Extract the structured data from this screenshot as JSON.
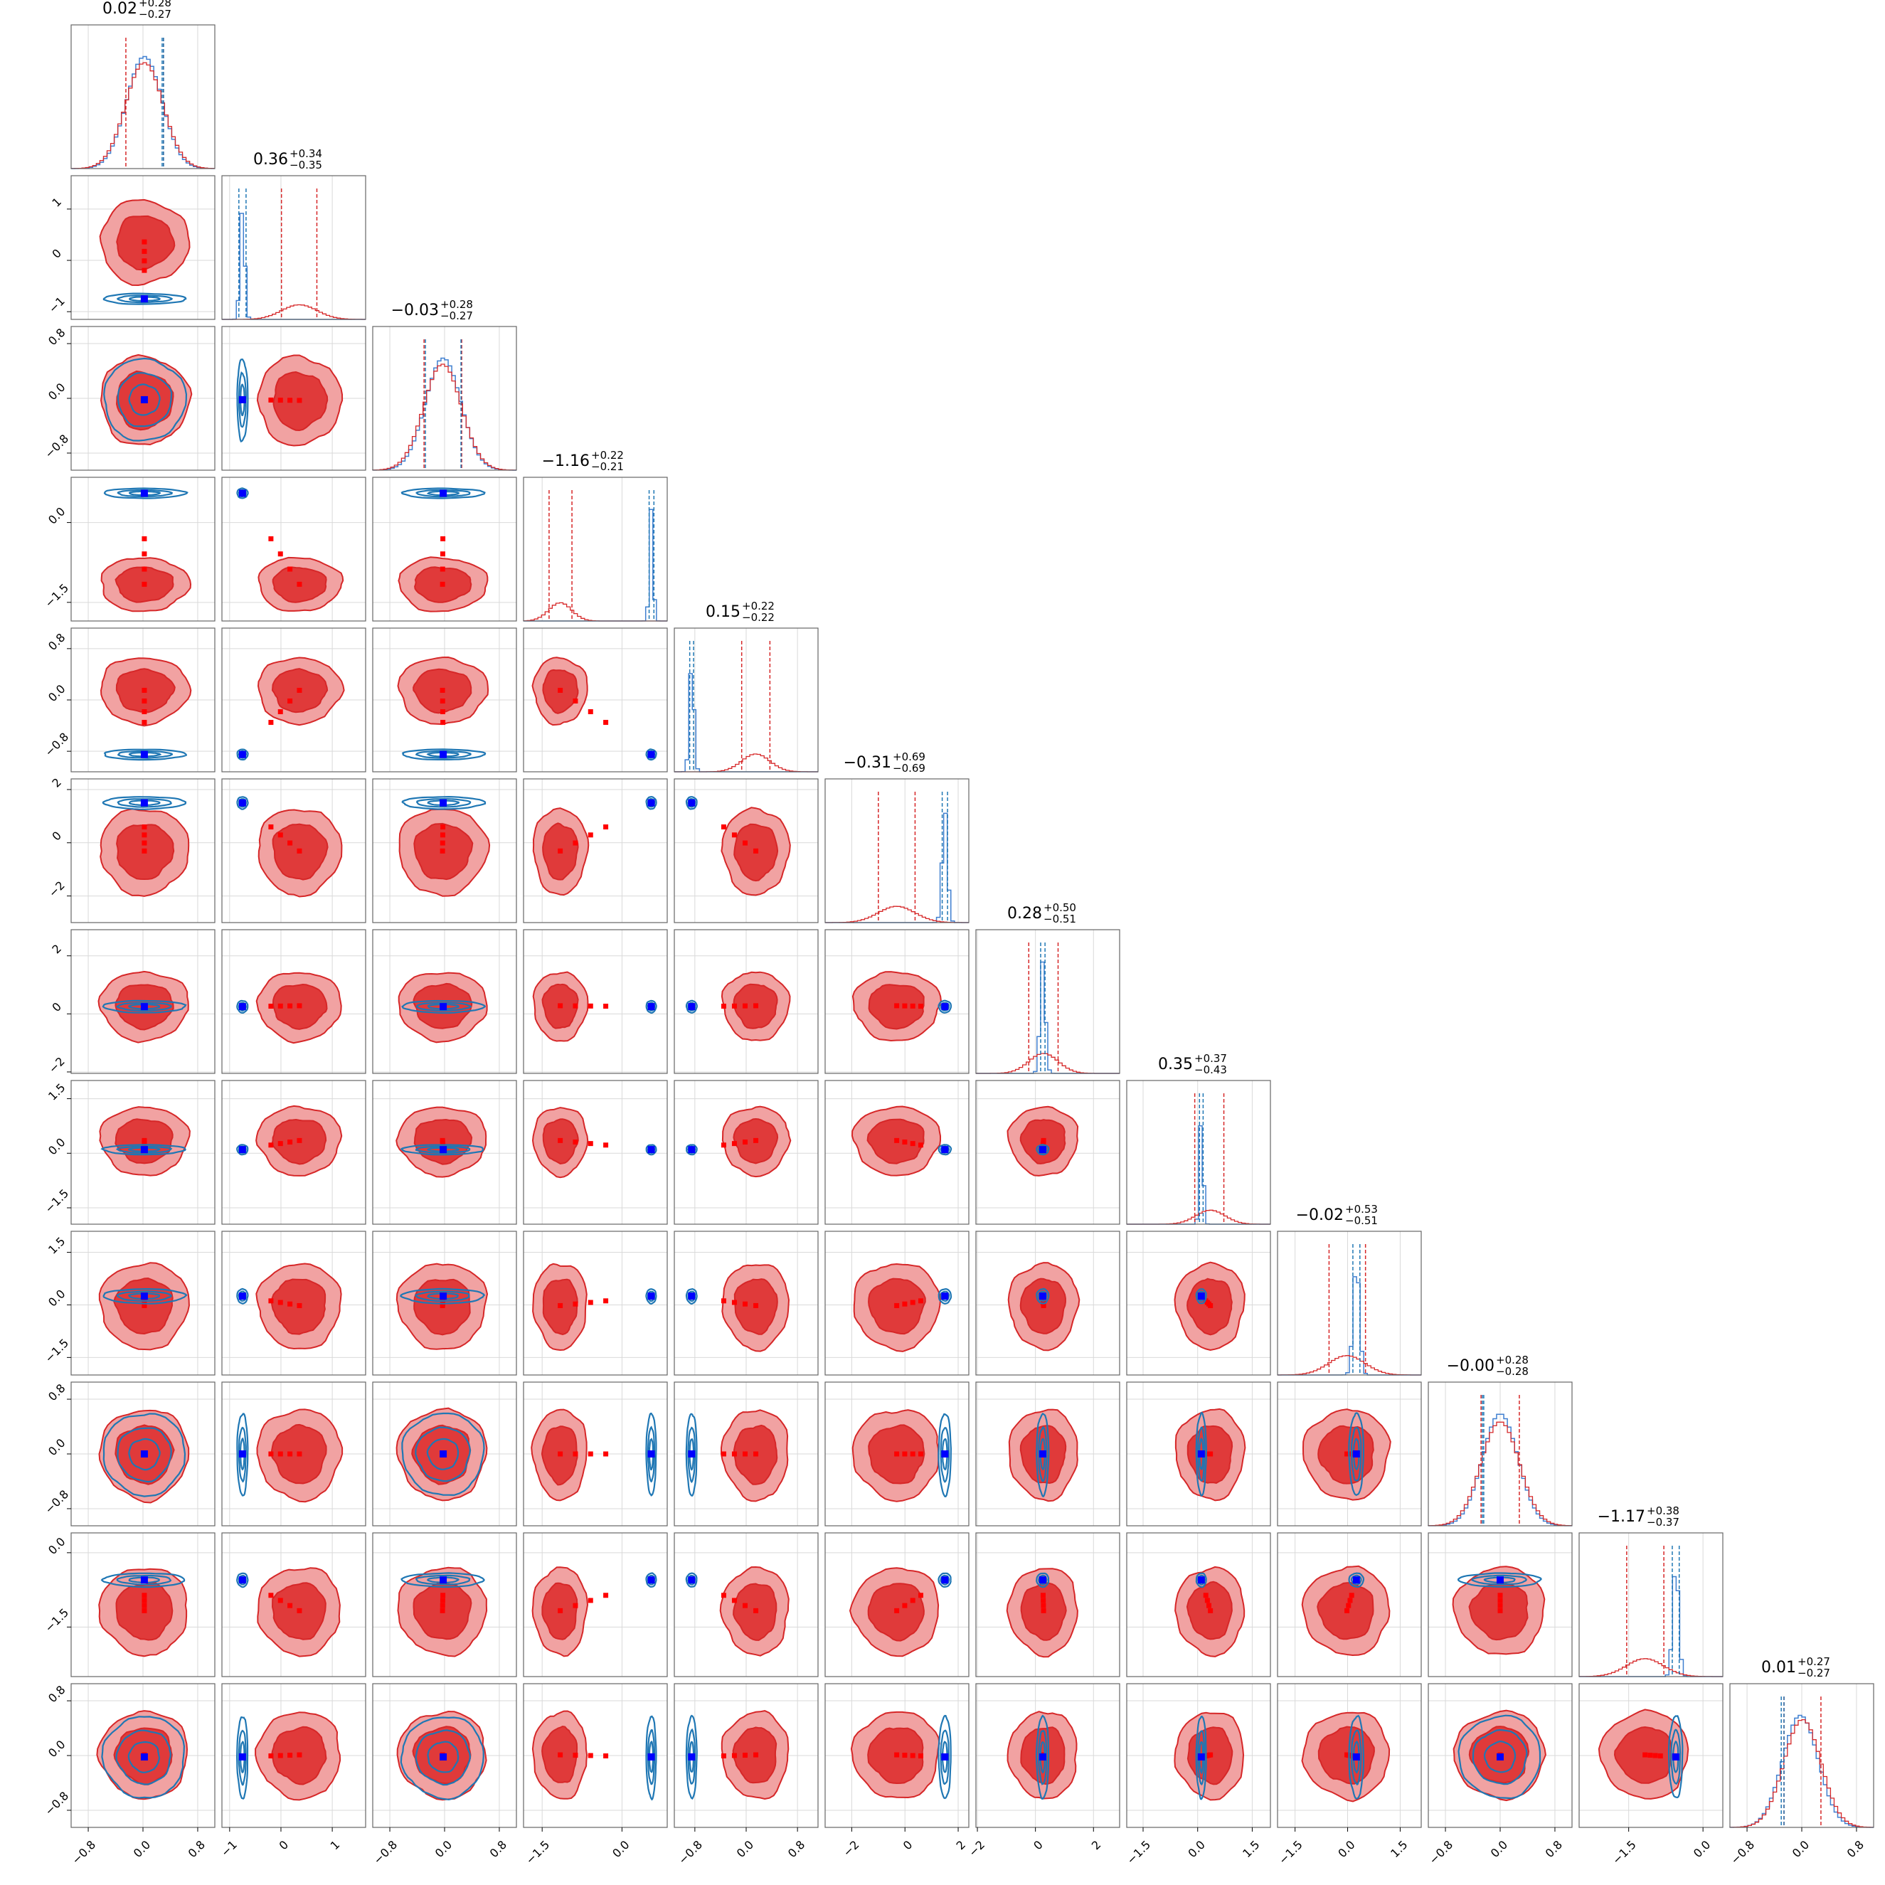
{
  "chart_data": {
    "type": "scatter",
    "subtype": "corner-plot",
    "n_params": 12,
    "grid": true,
    "colors": {
      "red": "#d62728",
      "red_fill_outer": "#f1a2a2",
      "red_fill_inner": "#e03a3a",
      "blue": "#1f77b4",
      "blue_marker": "#0000ff",
      "hist_blue": "#3f7fd0",
      "axes": "#666666",
      "grid": "#d9d9d9"
    },
    "params": [
      {
        "title": "0.02",
        "up": "+0.28",
        "lo": "−0.27",
        "red_mu": 0.02,
        "red_sig": 0.275,
        "blue_mu": 0.02,
        "blue_sig": 0.26,
        "blue_wide": true,
        "range": [
          -1.05,
          1.05
        ],
        "ticks": [
          -0.8,
          0.0,
          0.8
        ],
        "tick_labels": [
          "−0.8",
          "0.0",
          "0.8"
        ],
        "red_q": [
          -0.25,
          0.3
        ],
        "blue_q": [
          0.28,
          0.3
        ]
      },
      {
        "title": "0.36",
        "up": "+0.34",
        "lo": "−0.35",
        "red_mu": 0.36,
        "red_sig": 0.345,
        "blue_mu": -0.75,
        "blue_sig": 0.045,
        "blue_wide": false,
        "range": [
          -1.15,
          1.65
        ],
        "ticks": [
          -1,
          0,
          1
        ],
        "tick_labels": [
          "−1",
          "0",
          "1"
        ],
        "red_q": [
          0.01,
          0.7
        ],
        "blue_q": [
          -0.82,
          -0.68
        ]
      },
      {
        "title": "−0.03",
        "up": "+0.28",
        "lo": "−0.27",
        "red_mu": -0.03,
        "red_sig": 0.275,
        "blue_mu": -0.02,
        "blue_sig": 0.26,
        "blue_wide": true,
        "range": [
          -1.05,
          1.05
        ],
        "ticks": [
          -0.8,
          0.0,
          0.8
        ],
        "tick_labels": [
          "−0.8",
          "0.0",
          "0.8"
        ],
        "red_q": [
          -0.3,
          0.25
        ],
        "blue_q": [
          -0.28,
          0.24
        ]
      },
      {
        "title": "−1.16",
        "up": "+0.22",
        "lo": "−0.21",
        "red_mu": -1.16,
        "red_sig": 0.215,
        "blue_mu": 0.55,
        "blue_sig": 0.035,
        "blue_wide": false,
        "range": [
          -1.85,
          0.85
        ],
        "ticks": [
          -1.5,
          0.0
        ],
        "tick_labels": [
          "−1.5",
          "0.0"
        ],
        "red_q": [
          -1.37,
          -0.94
        ],
        "blue_q": [
          0.51,
          0.6
        ]
      },
      {
        "title": "0.15",
        "up": "+0.22",
        "lo": "−0.22",
        "red_mu": 0.15,
        "red_sig": 0.22,
        "blue_mu": -0.85,
        "blue_sig": 0.035,
        "blue_wide": false,
        "range": [
          -1.12,
          1.12
        ],
        "ticks": [
          -0.8,
          0.0,
          0.8
        ],
        "tick_labels": [
          "−0.8",
          "0.0",
          "0.8"
        ],
        "red_q": [
          -0.07,
          0.37
        ],
        "blue_q": [
          -0.88,
          -0.82
        ]
      },
      {
        "title": "−0.31",
        "up": "+0.69",
        "lo": "−0.69",
        "red_mu": -0.31,
        "red_sig": 0.69,
        "blue_mu": 1.5,
        "blue_sig": 0.1,
        "blue_wide": false,
        "range": [
          -3.0,
          2.4
        ],
        "ticks": [
          -2,
          0,
          2
        ],
        "tick_labels": [
          "−2",
          "0",
          "2"
        ],
        "red_q": [
          -1.0,
          0.38
        ],
        "blue_q": [
          1.4,
          1.6
        ]
      },
      {
        "title": "0.28",
        "up": "+0.50",
        "lo": "−0.51",
        "red_mu": 0.28,
        "red_sig": 0.505,
        "blue_mu": 0.25,
        "blue_sig": 0.09,
        "blue_wide": false,
        "range": [
          -2.05,
          2.9
        ],
        "ticks": [
          -2,
          0,
          2
        ],
        "tick_labels": [
          "−2",
          "0",
          "2"
        ],
        "red_q": [
          -0.23,
          0.78
        ],
        "blue_q": [
          0.18,
          0.33
        ]
      },
      {
        "title": "0.35",
        "up": "+0.37",
        "lo": "−0.43",
        "red_mu": 0.35,
        "red_sig": 0.4,
        "blue_mu": 0.1,
        "blue_sig": 0.05,
        "blue_wide": false,
        "range": [
          -1.95,
          2.0
        ],
        "ticks": [
          -1.5,
          0.0,
          1.5
        ],
        "tick_labels": [
          "−1.5",
          "0.0",
          "1.5"
        ],
        "red_q": [
          -0.08,
          0.72
        ],
        "blue_q": [
          0.05,
          0.15
        ]
      },
      {
        "title": "−0.02",
        "up": "+0.53",
        "lo": "−0.51",
        "red_mu": -0.02,
        "red_sig": 0.52,
        "blue_mu": 0.25,
        "blue_sig": 0.09,
        "blue_wide": false,
        "range": [
          -2.0,
          2.1
        ],
        "ticks": [
          -1.5,
          0.0,
          1.5
        ],
        "tick_labels": [
          "−1.5",
          "0.0",
          "1.5"
        ],
        "red_q": [
          -0.53,
          0.51
        ],
        "blue_q": [
          0.15,
          0.35
        ]
      },
      {
        "title": "−0.00",
        "up": "+0.28",
        "lo": "−0.28",
        "red_mu": 0.0,
        "red_sig": 0.28,
        "blue_mu": 0.0,
        "blue_sig": 0.26,
        "blue_wide": true,
        "range": [
          -1.05,
          1.05
        ],
        "ticks": [
          -0.8,
          0.0,
          0.8
        ],
        "tick_labels": [
          "−0.8",
          "0.0",
          "0.8"
        ],
        "red_q": [
          -0.28,
          0.28
        ],
        "blue_q": [
          -0.26,
          -0.24
        ]
      },
      {
        "title": "−1.17",
        "up": "+0.38",
        "lo": "−0.37",
        "red_mu": -1.17,
        "red_sig": 0.375,
        "blue_mu": -0.55,
        "blue_sig": 0.06,
        "blue_wide": false,
        "range": [
          -2.5,
          0.4
        ],
        "ticks": [
          -1.5,
          0.0
        ],
        "tick_labels": [
          "−1.5",
          "0.0"
        ],
        "red_q": [
          -1.54,
          -0.79
        ],
        "blue_q": [
          -0.62,
          -0.48
        ]
      },
      {
        "title": "0.01",
        "up": "+0.27",
        "lo": "−0.27",
        "red_mu": 0.01,
        "red_sig": 0.27,
        "blue_mu": -0.02,
        "blue_sig": 0.26,
        "blue_wide": true,
        "range": [
          -1.05,
          1.05
        ],
        "ticks": [
          -0.8,
          0.0,
          0.8
        ],
        "tick_labels": [
          "−0.8",
          "0.0",
          "0.8"
        ],
        "red_q": [
          -0.26,
          0.28
        ],
        "blue_q": [
          -0.3,
          -0.26
        ]
      }
    ]
  }
}
